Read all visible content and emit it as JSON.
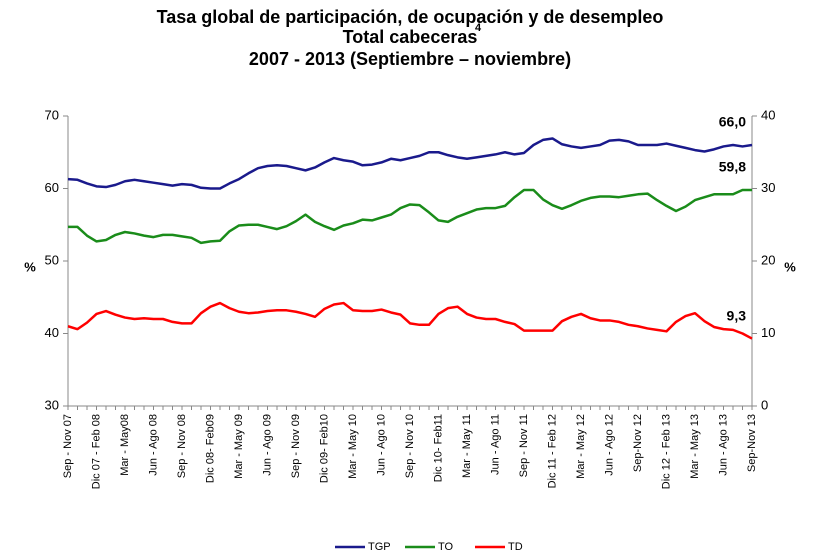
{
  "chart_data": {
    "type": "line",
    "title": [
      "Tasa global de participación, de ocupación y de desempleo",
      "Total cabeceras",
      "2007 - 2013 (Septiembre – noviembre)"
    ],
    "title_note": "4",
    "ylabel": "%",
    "y2label": "%",
    "categories": [
      "Sep - Nov 07",
      null,
      null,
      "Dic 07 - Feb 08",
      null,
      null,
      "Mar - May08",
      null,
      null,
      "Jun - Ago 08",
      null,
      null,
      "Sep - Nov 08",
      null,
      null,
      "Dic 08- Feb09",
      null,
      null,
      "Mar - May 09",
      null,
      null,
      "Jun - Ago 09",
      null,
      null,
      "Sep - Nov 09",
      null,
      null,
      "Dic 09- Feb10",
      null,
      null,
      "Mar - May 10",
      null,
      null,
      "Jun - Ago 10",
      null,
      null,
      "Sep - Nov 10",
      null,
      null,
      "Dic 10- Feb11",
      null,
      null,
      "Mar - May 11",
      null,
      null,
      "Jun - Ago 11",
      null,
      null,
      "Sep - Nov 11",
      null,
      null,
      "Dic 11 - Feb 12",
      null,
      null,
      "Mar - May 12",
      null,
      null,
      "Jun - Ago 12",
      null,
      null,
      "Sep-Nov 12",
      null,
      null,
      "Dic 12 - Feb 13",
      null,
      null,
      "Mar - May 13",
      null,
      null,
      "Jun - Ago 13",
      null,
      null,
      "Sep-Nov 13"
    ],
    "ylim": [
      30,
      70
    ],
    "yticks": [
      30,
      40,
      50,
      60,
      70
    ],
    "y2lim": [
      0,
      40
    ],
    "y2ticks": [
      0,
      10,
      20,
      30,
      40
    ],
    "series": [
      {
        "name": "TGP",
        "color": "#1a1a8c",
        "values": [
          61.3,
          61.2,
          60.7,
          60.3,
          60.2,
          60.5,
          61.0,
          61.2,
          61.0,
          60.8,
          60.6,
          60.4,
          60.6,
          60.5,
          60.1,
          60.0,
          60.0,
          60.7,
          61.3,
          62.1,
          62.8,
          63.1,
          63.2,
          63.1,
          62.8,
          62.5,
          62.9,
          63.6,
          64.2,
          63.9,
          63.7,
          63.2,
          63.3,
          63.6,
          64.1,
          63.9,
          64.2,
          64.5,
          65.0,
          65.0,
          64.6,
          64.3,
          64.1,
          64.3,
          64.5,
          64.7,
          65.0,
          64.7,
          64.9,
          66.0,
          66.7,
          66.9,
          66.1,
          65.8,
          65.6,
          65.8,
          66.0,
          66.6,
          66.7,
          66.5,
          66.0,
          66.0,
          66.0,
          66.2,
          65.9,
          65.6,
          65.3,
          65.1,
          65.4,
          65.8,
          66.0,
          65.8,
          66.0
        ],
        "value_labels": [
          null,
          null,
          null,
          null,
          null,
          null,
          null,
          null,
          null,
          null,
          null,
          null,
          null,
          null,
          null,
          null,
          null,
          null,
          null,
          null,
          null,
          null,
          null,
          null,
          null,
          null,
          null,
          null,
          null,
          null,
          null,
          null,
          null,
          null,
          null,
          null,
          null,
          null,
          null,
          null,
          null,
          null,
          null,
          null,
          null,
          null,
          null,
          null,
          null,
          null,
          null,
          null,
          null,
          null,
          null,
          null,
          null,
          null,
          null,
          null,
          null,
          null,
          null,
          null,
          null,
          null,
          null,
          null,
          null,
          null,
          null,
          null,
          "66,0"
        ]
      },
      {
        "name": "TO",
        "color": "#1a8c1a",
        "values": [
          54.7,
          54.7,
          53.5,
          52.7,
          52.9,
          53.6,
          54.0,
          53.8,
          53.5,
          53.3,
          53.6,
          53.6,
          53.4,
          53.2,
          52.5,
          52.7,
          52.8,
          54.1,
          54.9,
          55.0,
          55.0,
          54.7,
          54.4,
          54.8,
          55.5,
          56.4,
          55.4,
          54.8,
          54.3,
          54.9,
          55.2,
          55.7,
          55.6,
          56.0,
          56.4,
          57.3,
          57.8,
          57.7,
          56.7,
          55.6,
          55.4,
          56.1,
          56.6,
          57.1,
          57.3,
          57.3,
          57.6,
          58.8,
          59.8,
          59.8,
          58.5,
          57.7,
          57.2,
          57.7,
          58.3,
          58.7,
          58.9,
          58.9,
          58.8,
          59.0,
          59.2,
          59.3,
          58.4,
          57.6,
          56.9,
          57.5,
          58.4,
          58.8,
          59.2,
          59.2,
          59.2,
          59.8,
          59.8
        ],
        "value_labels": [
          null,
          null,
          null,
          null,
          null,
          null,
          null,
          null,
          null,
          null,
          null,
          null,
          null,
          null,
          null,
          null,
          null,
          null,
          null,
          null,
          null,
          null,
          null,
          null,
          null,
          null,
          null,
          null,
          null,
          null,
          null,
          null,
          null,
          null,
          null,
          null,
          null,
          null,
          null,
          null,
          null,
          null,
          null,
          null,
          null,
          null,
          null,
          null,
          null,
          null,
          null,
          null,
          null,
          null,
          null,
          null,
          null,
          null,
          null,
          null,
          null,
          null,
          null,
          null,
          null,
          null,
          null,
          null,
          null,
          null,
          null,
          null,
          "59,8"
        ]
      },
      {
        "name": "TD",
        "color": "#ff0000",
        "axis": "y2",
        "values": [
          11.0,
          10.6,
          11.5,
          12.7,
          13.1,
          12.6,
          12.2,
          12.0,
          12.1,
          12.0,
          12.0,
          11.6,
          11.4,
          11.4,
          12.8,
          13.7,
          14.2,
          13.5,
          13.0,
          12.8,
          12.9,
          13.1,
          13.2,
          13.2,
          13.0,
          12.7,
          12.3,
          13.4,
          14.0,
          14.2,
          13.2,
          13.1,
          13.1,
          13.3,
          12.9,
          12.6,
          11.4,
          11.2,
          11.2,
          12.7,
          13.5,
          13.7,
          12.7,
          12.2,
          12.0,
          12.0,
          11.6,
          11.3,
          10.4,
          10.4,
          10.4,
          10.4,
          11.7,
          12.3,
          12.7,
          12.1,
          11.8,
          11.8,
          11.6,
          11.2,
          11.0,
          10.7,
          10.5,
          10.3,
          11.6,
          12.4,
          12.8,
          11.7,
          10.9,
          10.6,
          10.5,
          10.0,
          9.3
        ],
        "value_labels": [
          null,
          null,
          null,
          null,
          null,
          null,
          null,
          null,
          null,
          null,
          null,
          null,
          null,
          null,
          null,
          null,
          null,
          null,
          null,
          null,
          null,
          null,
          null,
          null,
          null,
          null,
          null,
          null,
          null,
          null,
          null,
          null,
          null,
          null,
          null,
          null,
          null,
          null,
          null,
          null,
          null,
          null,
          null,
          null,
          null,
          null,
          null,
          null,
          null,
          null,
          null,
          null,
          null,
          null,
          null,
          null,
          null,
          null,
          null,
          null,
          null,
          null,
          null,
          null,
          null,
          null,
          null,
          null,
          null,
          null,
          null,
          null,
          "9,3"
        ]
      }
    ],
    "legend": "bottom"
  }
}
